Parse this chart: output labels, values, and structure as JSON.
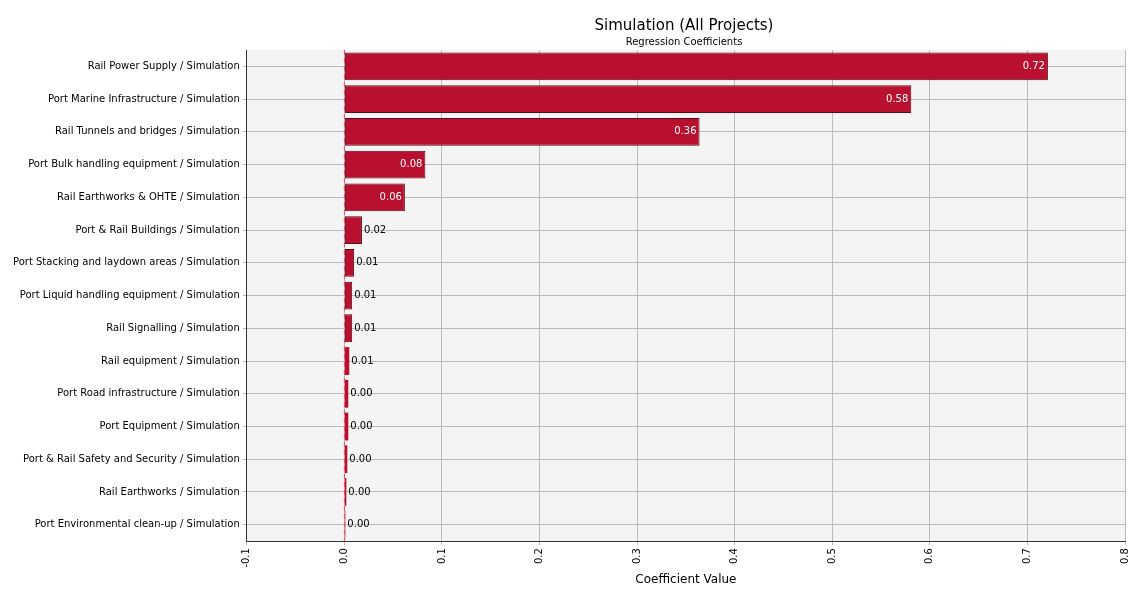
{
  "chart_data": {
    "type": "bar",
    "orientation": "horizontal",
    "title": "Simulation (All Projects)",
    "subtitle": "Regression Coefficients",
    "xlabel": "Coefficient Value",
    "categories": [
      "Rail Power Supply / Simulation",
      "Port Marine Infrastructure / Simulation",
      "Rail Tunnels and bridges / Simulation",
      "Port Bulk handling equipment / Simulation",
      "Rail Earthworks & OHTE / Simulation",
      "Port & Rail Buildings / Simulation",
      "Port Stacking and laydown areas / Simulation",
      "Port Liquid handling equipment / Simulation",
      "Rail Signalling / Simulation",
      "Rail equipment / Simulation",
      "Port Road infrastructure / Simulation",
      "Port Equipment / Simulation",
      "Port & Rail Safety and Security / Simulation",
      "Rail Earthworks / Simulation",
      "Port Environmental clean-up / Simulation"
    ],
    "values": [
      0.721,
      0.581,
      0.364,
      0.083,
      0.062,
      0.018,
      0.01,
      0.008,
      0.008,
      0.005,
      0.004,
      0.004,
      0.003,
      0.002,
      0.001
    ],
    "value_labels": [
      "0.72",
      "0.58",
      "0.36",
      "0.08",
      "0.06",
      "0.02",
      "0.01",
      "0.01",
      "0.01",
      "0.01",
      "0.00",
      "0.00",
      "0.00",
      "0.00",
      "0.00"
    ],
    "color": "#b8102e",
    "xlim": [
      -0.1,
      0.8
    ],
    "xticks": [
      {
        "value": -0.1,
        "label": "-0.1"
      },
      {
        "value": 0,
        "label": "0.0"
      },
      0.1,
      0.2,
      0.3,
      0.4,
      0.5,
      0.6,
      0.7,
      0.8
    ],
    "ref_lines": [
      {
        "axis": "x",
        "value": 0,
        "color": "#e84a6a",
        "line_style": "dashed"
      }
    ],
    "grid": true,
    "legend": false
  }
}
